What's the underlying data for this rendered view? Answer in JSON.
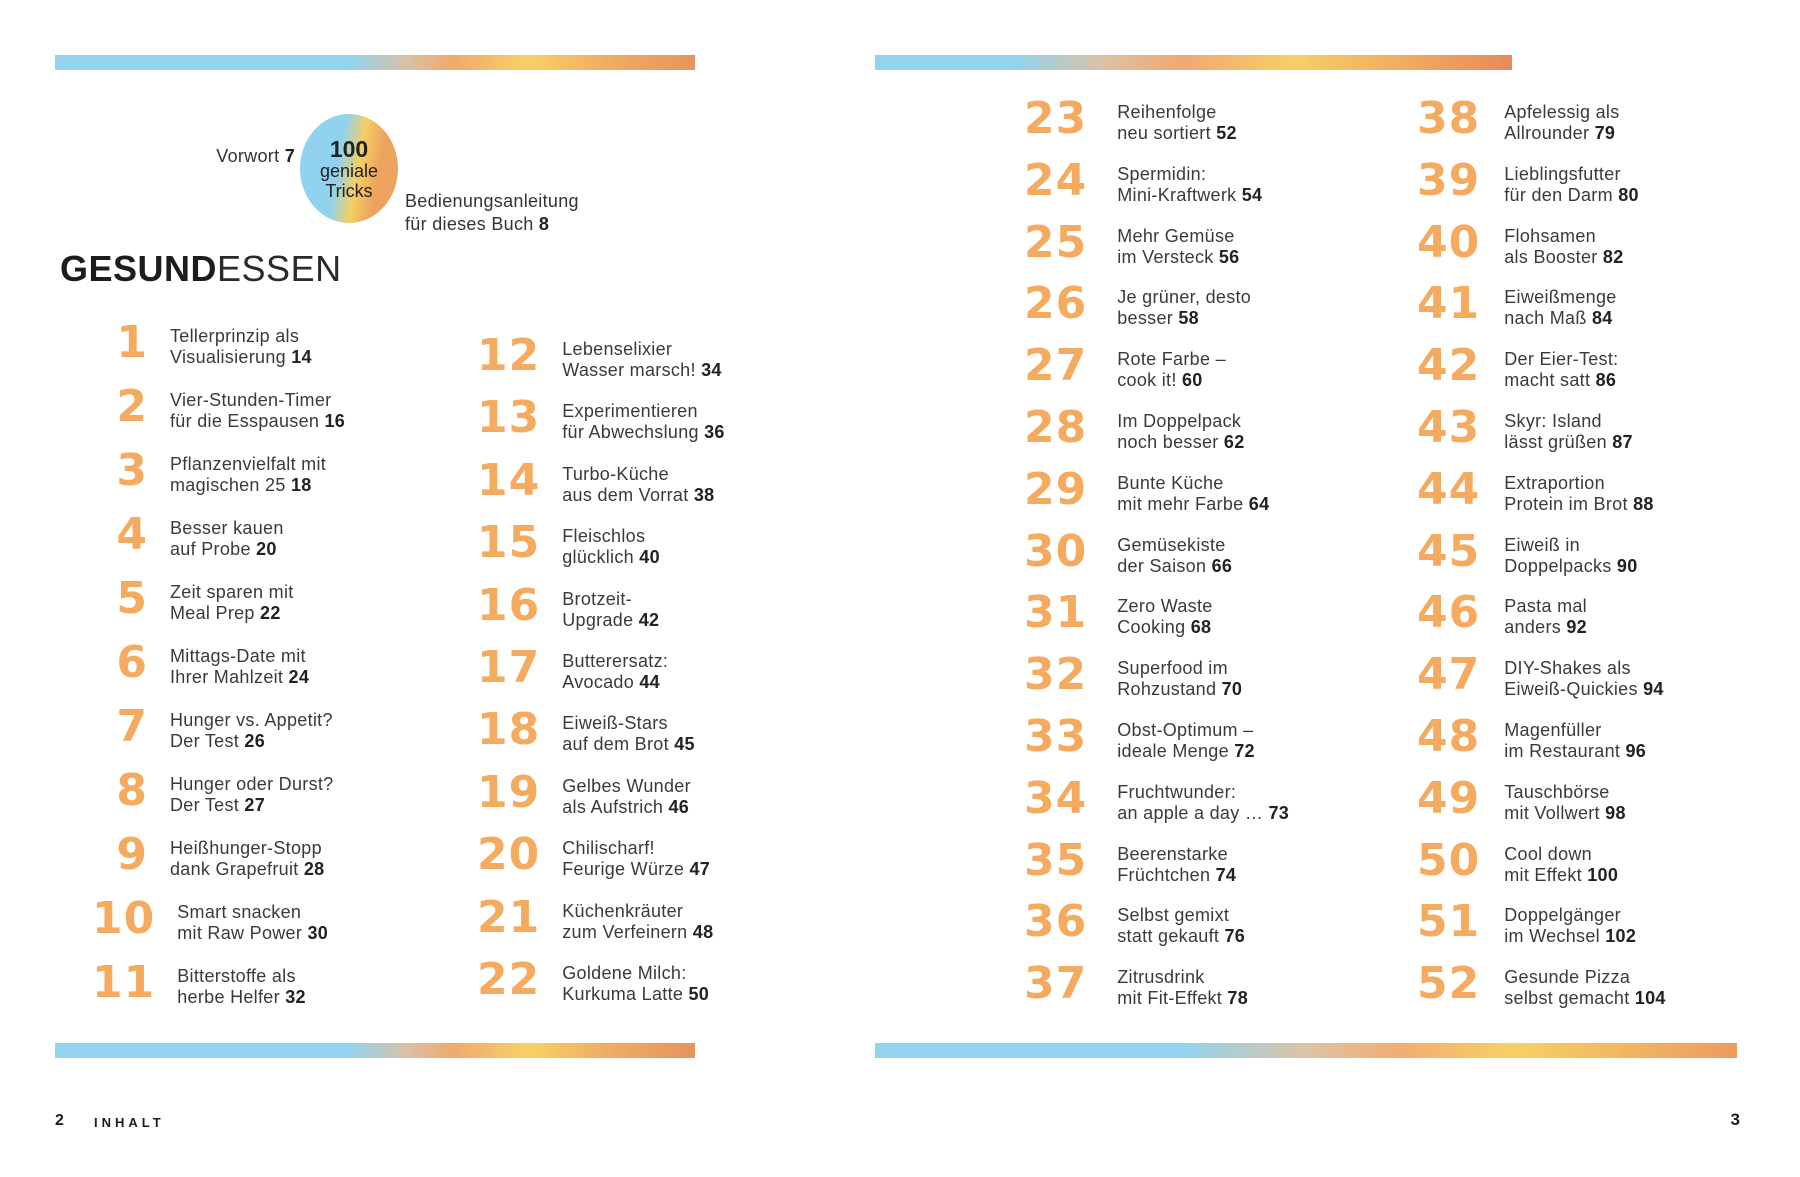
{
  "colors": {
    "accent_orange": "#f4aa5f",
    "bar_blue": "#92d3ee",
    "bar_yellow": "#f7d165",
    "bar_orange": "#e8995d",
    "text": "#3a3a3a"
  },
  "page_left": {
    "vorwort": {
      "label": "Vorwort",
      "page": "7"
    },
    "badge": {
      "line1": "100",
      "line2": "geniale",
      "line3": "Tricks"
    },
    "manual": {
      "line1": "Bedienungsanleitung",
      "line2": "für dieses Buch",
      "page": "8"
    },
    "section_title": {
      "bold": "GESUND",
      "light": "ESSEN"
    },
    "col1": [
      {
        "num": "1",
        "line1": "Tellerprinzip als",
        "line2": "Visualisierung",
        "page": "14"
      },
      {
        "num": "2",
        "line1": "Vier-Stunden-Timer",
        "line2": "für die Esspausen",
        "page": "16"
      },
      {
        "num": "3",
        "line1": "Pflanzenvielfalt mit",
        "line2": "magischen 25",
        "page": "18"
      },
      {
        "num": "4",
        "line1": "Besser kauen",
        "line2": "auf Probe",
        "page": "20"
      },
      {
        "num": "5",
        "line1": "Zeit sparen mit",
        "line2": "Meal Prep",
        "page": "22"
      },
      {
        "num": "6",
        "line1": "Mittags-Date mit",
        "line2": "Ihrer Mahlzeit",
        "page": "24"
      },
      {
        "num": "7",
        "line1": "Hunger vs. Appetit?",
        "line2": "Der Test",
        "page": "26"
      },
      {
        "num": "8",
        "line1": "Hunger oder Durst?",
        "line2": "Der Test",
        "page": "27"
      },
      {
        "num": "9",
        "line1": "Heißhunger-Stopp",
        "line2": "dank Grapefruit",
        "page": "28"
      },
      {
        "num": "10",
        "line1": "Smart snacken",
        "line2": "mit Raw Power",
        "page": "30"
      },
      {
        "num": "11",
        "line1": "Bitterstoffe als",
        "line2": "herbe Helfer",
        "page": "32"
      }
    ],
    "col2": [
      {
        "num": "12",
        "line1": "Lebenselixier",
        "line2": "Wasser marsch!",
        "page": "34"
      },
      {
        "num": "13",
        "line1": "Experimentieren",
        "line2": "für Abwechslung",
        "page": "36"
      },
      {
        "num": "14",
        "line1": "Turbo-Küche",
        "line2": "aus dem Vorrat",
        "page": "38"
      },
      {
        "num": "15",
        "line1": "Fleischlos",
        "line2": "glücklich",
        "page": "40"
      },
      {
        "num": "16",
        "line1": "Brotzeit-",
        "line2": "Upgrade",
        "page": "42"
      },
      {
        "num": "17",
        "line1": "Butterersatz:",
        "line2": "Avocado",
        "page": "44"
      },
      {
        "num": "18",
        "line1": "Eiweiß-Stars",
        "line2": "auf dem Brot",
        "page": "45"
      },
      {
        "num": "19",
        "line1": "Gelbes Wunder",
        "line2": "als Aufstrich",
        "page": "46"
      },
      {
        "num": "20",
        "line1": "Chilischarf!",
        "line2": "Feurige Würze",
        "page": "47"
      },
      {
        "num": "21",
        "line1": "Küchenkräuter",
        "line2": "zum Verfeinern",
        "page": "48"
      },
      {
        "num": "22",
        "line1": "Goldene Milch:",
        "line2": "Kurkuma Latte",
        "page": "50"
      }
    ],
    "footer": {
      "page_number": "2",
      "label": "INHALT"
    }
  },
  "page_right": {
    "col1": [
      {
        "num": "23",
        "line1": "Reihenfolge",
        "line2": "neu sortiert",
        "page": "52"
      },
      {
        "num": "24",
        "line1": "Spermidin:",
        "line2": "Mini-Kraftwerk",
        "page": "54"
      },
      {
        "num": "25",
        "line1": "Mehr Gemüse",
        "line2": "im Versteck",
        "page": "56"
      },
      {
        "num": "26",
        "line1": "Je grüner, desto",
        "line2": "besser",
        "page": "58"
      },
      {
        "num": "27",
        "line1": "Rote Farbe –",
        "line2": "cook it!",
        "page": "60"
      },
      {
        "num": "28",
        "line1": "Im Doppelpack",
        "line2": "noch besser",
        "page": "62"
      },
      {
        "num": "29",
        "line1": "Bunte Küche",
        "line2": "mit mehr Farbe",
        "page": "64"
      },
      {
        "num": "30",
        "line1": "Gemüsekiste",
        "line2": "der Saison",
        "page": "66"
      },
      {
        "num": "31",
        "line1": "Zero Waste",
        "line2": "Cooking",
        "page": "68"
      },
      {
        "num": "32",
        "line1": "Superfood im",
        "line2": "Rohzustand",
        "page": "70"
      },
      {
        "num": "33",
        "line1": "Obst-Optimum –",
        "line2": "ideale Menge",
        "page": "72"
      },
      {
        "num": "34",
        "line1": "Fruchtwunder:",
        "line2": "an apple a day …",
        "page": "73"
      },
      {
        "num": "35",
        "line1": "Beerenstarke",
        "line2": "Früchtchen",
        "page": "74"
      },
      {
        "num": "36",
        "line1": "Selbst gemixt",
        "line2": "statt gekauft",
        "page": "76"
      },
      {
        "num": "37",
        "line1": "Zitrusdrink",
        "line2": "mit Fit-Effekt",
        "page": "78"
      }
    ],
    "col2": [
      {
        "num": "38",
        "line1": "Apfelessig als",
        "line2": "Allrounder",
        "page": "79"
      },
      {
        "num": "39",
        "line1": "Lieblingsfutter",
        "line2": "für den Darm",
        "page": "80"
      },
      {
        "num": "40",
        "line1": "Flohsamen",
        "line2": "als Booster",
        "page": "82"
      },
      {
        "num": "41",
        "line1": "Eiweißmenge",
        "line2": "nach Maß",
        "page": "84"
      },
      {
        "num": "42",
        "line1": "Der Eier-Test:",
        "line2": "macht satt",
        "page": "86"
      },
      {
        "num": "43",
        "line1": "Skyr: Island",
        "line2": "lässt grüßen",
        "page": "87"
      },
      {
        "num": "44",
        "line1": "Extraportion",
        "line2": "Protein im Brot",
        "page": "88"
      },
      {
        "num": "45",
        "line1": "Eiweiß in",
        "line2": "Doppelpacks",
        "page": "90"
      },
      {
        "num": "46",
        "line1": "Pasta mal",
        "line2": "anders",
        "page": "92"
      },
      {
        "num": "47",
        "line1": "DIY-Shakes als",
        "line2": "Eiweiß-Quickies",
        "page": "94"
      },
      {
        "num": "48",
        "line1": "Magenfüller",
        "line2": "im Restaurant",
        "page": "96"
      },
      {
        "num": "49",
        "line1": "Tauschbörse",
        "line2": "mit Vollwert",
        "page": "98"
      },
      {
        "num": "50",
        "line1": "Cool down",
        "line2": "mit Effekt",
        "page": "100"
      },
      {
        "num": "51",
        "line1": "Doppelgänger",
        "line2": "im Wechsel",
        "page": "102"
      },
      {
        "num": "52",
        "line1": "Gesunde Pizza",
        "line2": "selbst gemacht",
        "page": "104"
      }
    ],
    "footer": {
      "page_number": "3"
    }
  }
}
